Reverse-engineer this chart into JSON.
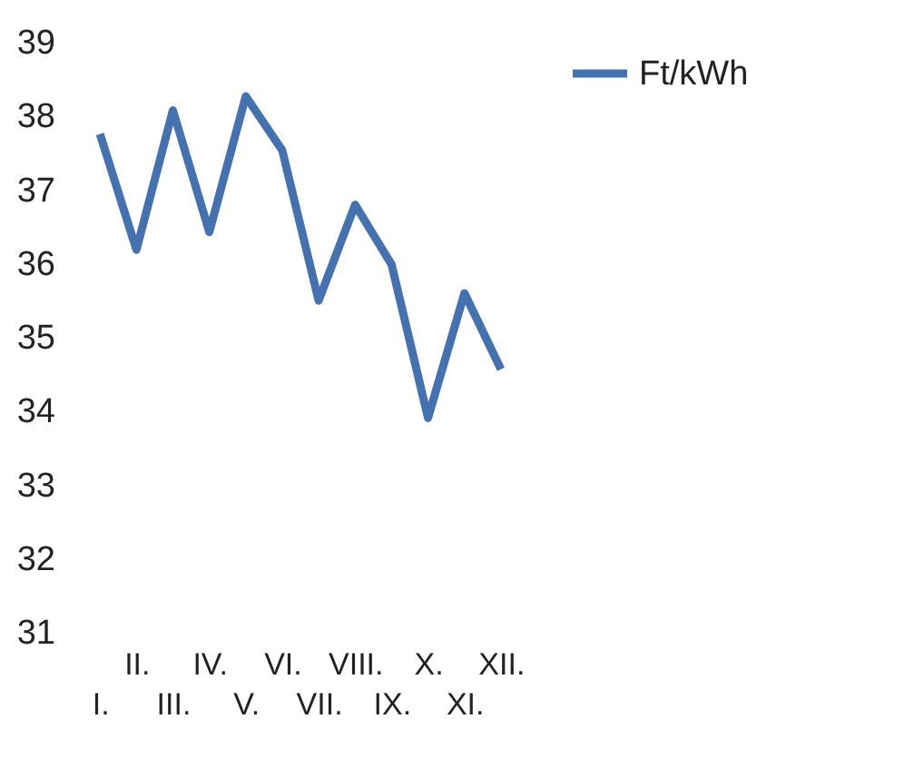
{
  "chart_data": {
    "type": "line",
    "categories": [
      "I.",
      "II.",
      "III.",
      "IV.",
      "V.",
      "VI.",
      "VII.",
      "VIII.",
      "IX.",
      "X.",
      "XI.",
      "XII."
    ],
    "series": [
      {
        "name": "Ft/kWh",
        "color": "#4472b0",
        "values": [
          37.75,
          36.18,
          38.07,
          36.42,
          38.26,
          37.53,
          35.49,
          36.79,
          35.98,
          33.9,
          35.59,
          34.56
        ]
      }
    ],
    "ylim": [
      31,
      39
    ],
    "yticks": [
      31,
      32,
      33,
      34,
      35,
      36,
      37,
      38,
      39
    ],
    "grid": false,
    "legend": "right",
    "marker": "none",
    "line_style": "solid"
  }
}
